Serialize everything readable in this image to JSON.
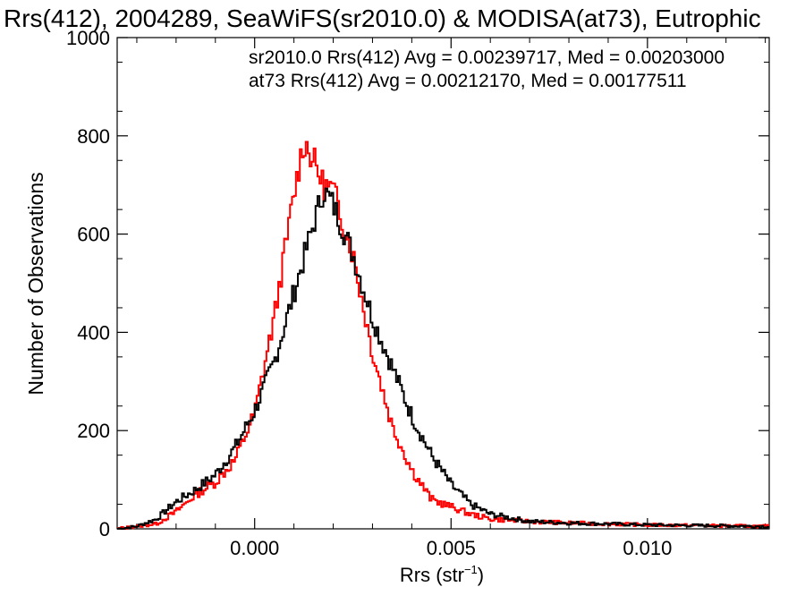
{
  "chart_data": {
    "type": "histogram",
    "title": "Rrs(412), 2004289, SeaWiFS(sr2010.0) & MODISA(at73), Eutrophic",
    "xlabel": "Rrs (str",
    "xlabel_sup": "−1",
    "xlabel_close": ")",
    "ylabel": "Number of Observations",
    "xlim": [
      -0.0035,
      0.0131
    ],
    "ylim": [
      0,
      1000
    ],
    "x_ticks": [
      0.0,
      0.005,
      0.01
    ],
    "x_tick_labels": [
      "0.000",
      "0.005",
      "0.010"
    ],
    "y_ticks": [
      0,
      200,
      400,
      600,
      800,
      1000
    ],
    "y_tick_labels": [
      "0",
      "200",
      "400",
      "600",
      "800",
      "1000"
    ],
    "grid": false,
    "legend_placement": "top-right",
    "annotations": [
      {
        "text": "sr2010.0 Rrs(412) Avg = 0.00239717, Med = 0.00203000",
        "color": "#000000"
      },
      {
        "text": "at73 Rrs(412) Avg = 0.00212170, Med = 0.00177511",
        "color": "#ff0000"
      }
    ],
    "series": [
      {
        "color": "#000000",
        "x": [
          -0.0035,
          -0.003,
          -0.0025,
          -0.002,
          -0.0015,
          -0.001,
          -0.0005,
          0.0,
          0.0005,
          0.001,
          0.0015,
          0.00175,
          0.002,
          0.0025,
          0.003,
          0.0035,
          0.004,
          0.0045,
          0.005,
          0.0055,
          0.006,
          0.007,
          0.008,
          0.01,
          0.0131
        ],
        "y": [
          0,
          5,
          20,
          55,
          80,
          110,
          165,
          240,
          340,
          480,
          620,
          690,
          660,
          560,
          430,
          330,
          230,
          150,
          90,
          50,
          30,
          15,
          12,
          8,
          5
        ]
      },
      {
        "color": "#ff0000",
        "x": [
          -0.0035,
          -0.003,
          -0.0025,
          -0.002,
          -0.0015,
          -0.001,
          -0.0005,
          0.0,
          0.0005,
          0.001,
          0.00125,
          0.0015,
          0.00175,
          0.002,
          0.0025,
          0.003,
          0.0035,
          0.004,
          0.0045,
          0.005,
          0.0055,
          0.006,
          0.007,
          0.008,
          0.01,
          0.0131
        ],
        "y": [
          0,
          5,
          10,
          35,
          70,
          95,
          140,
          235,
          430,
          680,
          790,
          750,
          700,
          690,
          560,
          360,
          210,
          120,
          60,
          45,
          30,
          20,
          15,
          12,
          8,
          5
        ]
      }
    ]
  }
}
